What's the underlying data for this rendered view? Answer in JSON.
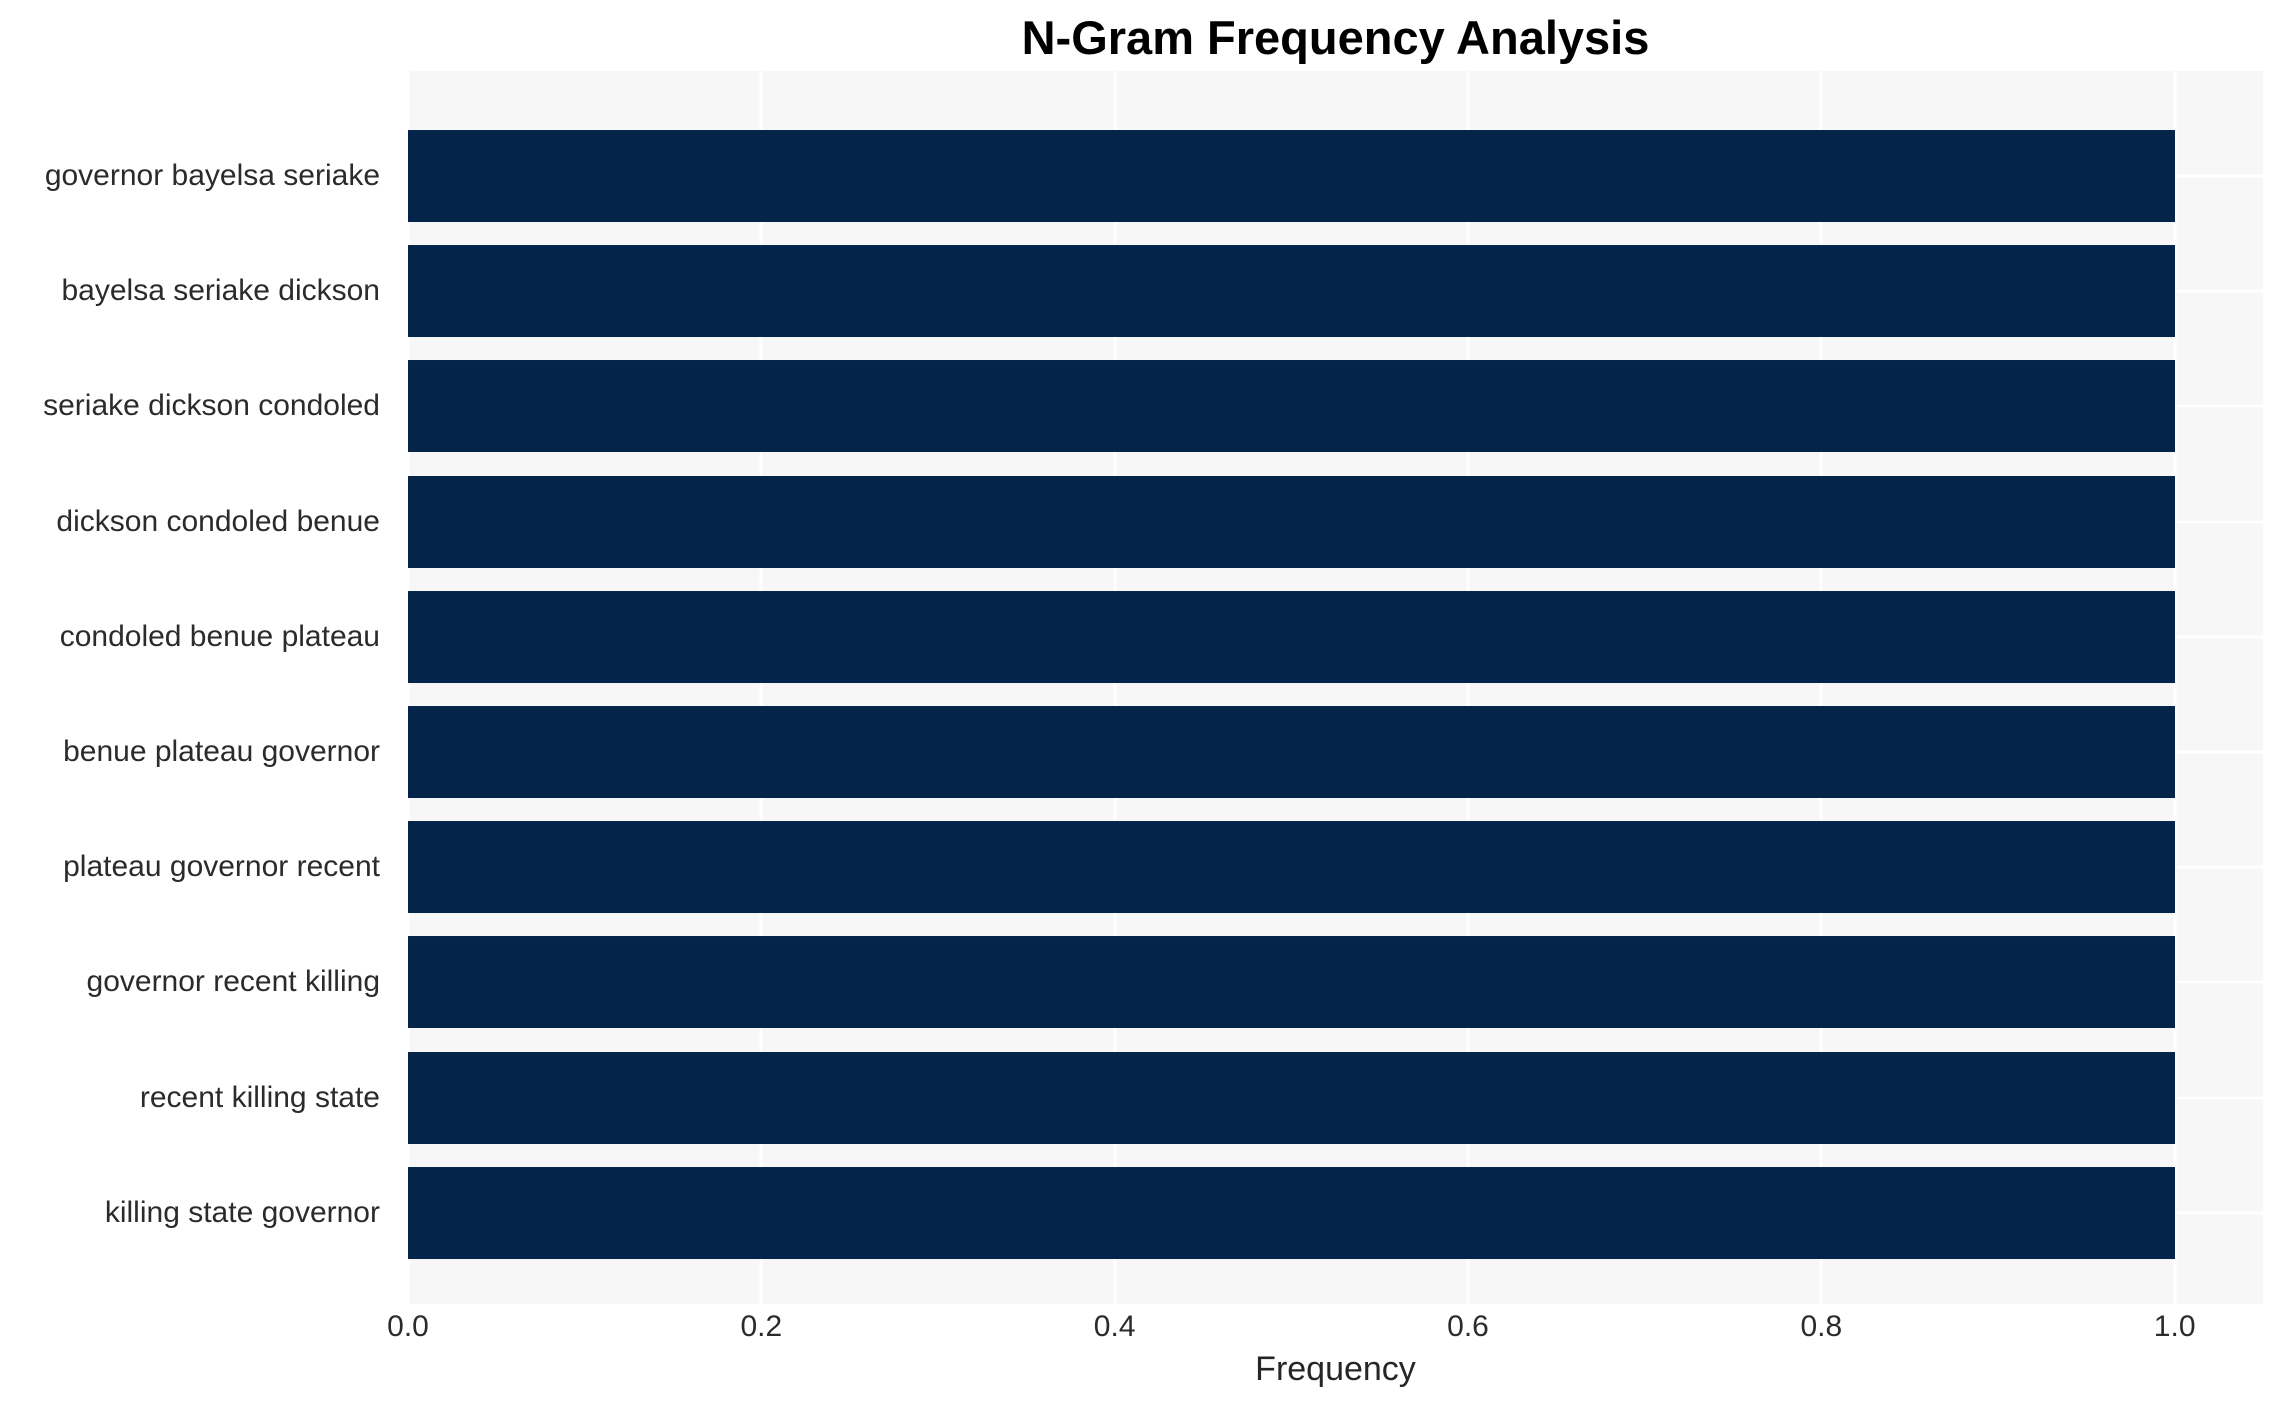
{
  "chart_data": {
    "type": "bar",
    "orientation": "horizontal",
    "title": "N-Gram Frequency Analysis",
    "xlabel": "Frequency",
    "ylabel": "",
    "categories": [
      "governor bayelsa seriake",
      "bayelsa seriake dickson",
      "seriake dickson condoled",
      "dickson condoled benue",
      "condoled benue plateau",
      "benue plateau governor",
      "plateau governor recent",
      "governor recent killing",
      "recent killing state",
      "killing state governor"
    ],
    "values": [
      1.0,
      1.0,
      1.0,
      1.0,
      1.0,
      1.0,
      1.0,
      1.0,
      1.0,
      1.0
    ],
    "x_ticks": [
      0.0,
      0.2,
      0.4,
      0.6,
      0.8,
      1.0
    ],
    "x_tick_labels": [
      "0.0",
      "0.2",
      "0.4",
      "0.6",
      "0.8",
      "1.0"
    ],
    "xlim": [
      0,
      1.05
    ],
    "grid": true,
    "legend_position": "none",
    "colors": {
      "bar": "#052449",
      "plot_background": "#f7f7f8",
      "gridline": "#ffffff",
      "tick_text": "#2b2b2b",
      "axis_label_text": "#262626",
      "title_text": "#000000"
    }
  }
}
